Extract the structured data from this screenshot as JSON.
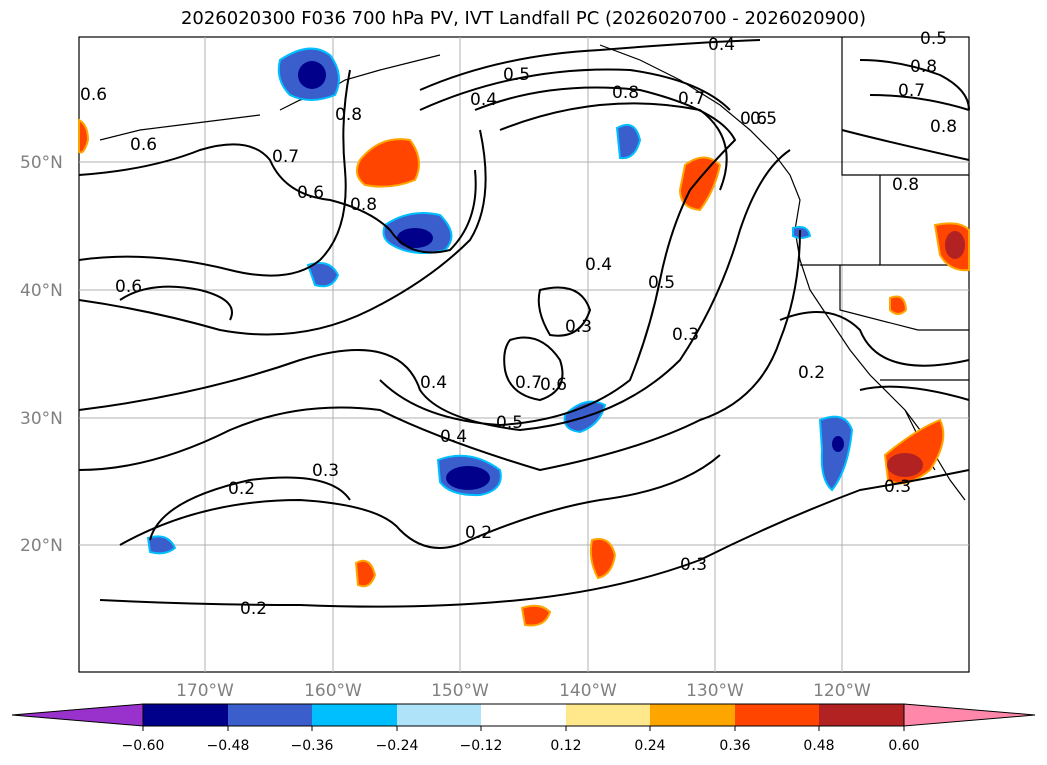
{
  "title": "2026020300 F036 700 hPa PV, IVT Landfall PC (2026020700 - 2026020900)",
  "map": {
    "lat_labels": [
      "50°N",
      "40°N",
      "30°N",
      "20°N"
    ],
    "lon_labels": [
      "170°W",
      "160°W",
      "150°W",
      "140°W",
      "130°W",
      "120°W"
    ],
    "contour_labels": [
      "0.4",
      "0.5",
      "0.8",
      "0.4",
      "0.5",
      "0.6",
      "0.7",
      "0.8",
      "0.7",
      "0.6",
      "0.6",
      "0.8",
      "0.8",
      "0.6",
      "0.8",
      "0.7",
      "0.4",
      "0.5",
      "0.3",
      "0.3",
      "0.6",
      "0.7",
      "0.6",
      "0.4",
      "0.5",
      "0.4",
      "0.2",
      "0.3",
      "0.2",
      "0.2",
      "0.3",
      "0.2",
      "0.3",
      "0.8",
      "0.5"
    ],
    "fill_colors": {
      "orange": "#ff4500",
      "red": "#b22222",
      "blue": "#3a5fcd",
      "navy": "#000080",
      "cyan": "#00bfff"
    }
  },
  "colorbar": {
    "tick_labels": [
      "−0.60",
      "−0.48",
      "−0.36",
      "−0.24",
      "−0.12",
      "0.12",
      "0.24",
      "0.36",
      "0.48",
      "0.60"
    ],
    "colors": [
      "#9932cc",
      "#00008b",
      "#3a5fcd",
      "#00bfff",
      "#afe3fa",
      "#ffffff",
      "#ffe78c",
      "#ffa500",
      "#ff4500",
      "#b22222",
      "#ff88aa"
    ]
  }
}
